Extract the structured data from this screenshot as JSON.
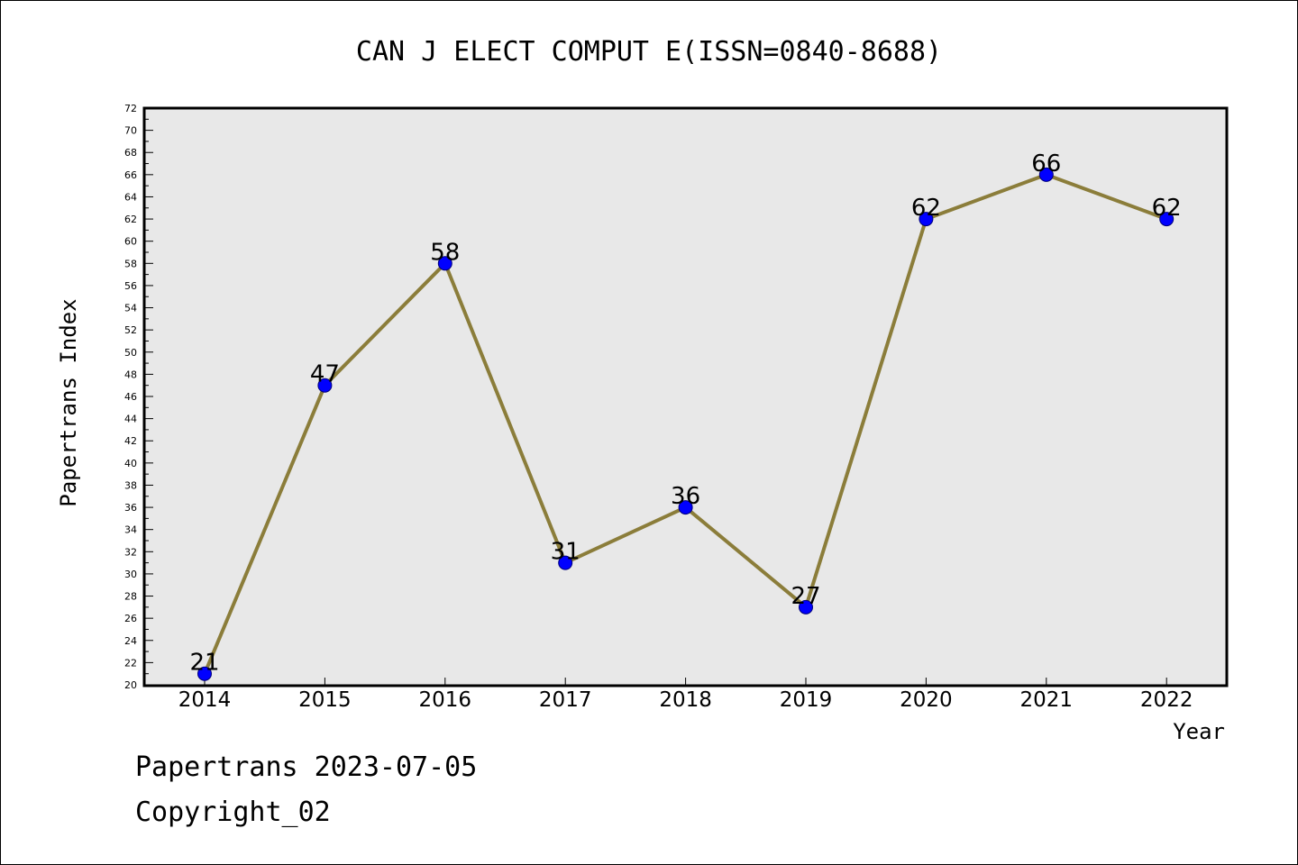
{
  "chart_data": {
    "type": "line",
    "title": "CAN J ELECT COMPUT E(ISSN=0840-8688)",
    "xlabel": "Year",
    "ylabel": "Papertrans Index",
    "categories": [
      "2014",
      "2015",
      "2016",
      "2017",
      "2018",
      "2019",
      "2020",
      "2021",
      "2022"
    ],
    "series": [
      {
        "values": [
          21,
          47,
          58,
          31,
          36,
          27,
          62,
          66,
          62
        ]
      }
    ],
    "data_labels": [
      "21",
      "47",
      "58",
      "31",
      "36",
      "27",
      "62",
      "66",
      "62"
    ],
    "ylim": [
      20,
      72
    ],
    "ytick_step": 2,
    "yminor_step": 1,
    "grid": false,
    "legend": "none",
    "colors": {
      "line": "#8b7d3a",
      "marker": "#0000ff",
      "plot_background": "#e8e8e8"
    }
  },
  "footer": {
    "line1": "Papertrans 2023-07-05",
    "line2": "Copyright_02"
  }
}
